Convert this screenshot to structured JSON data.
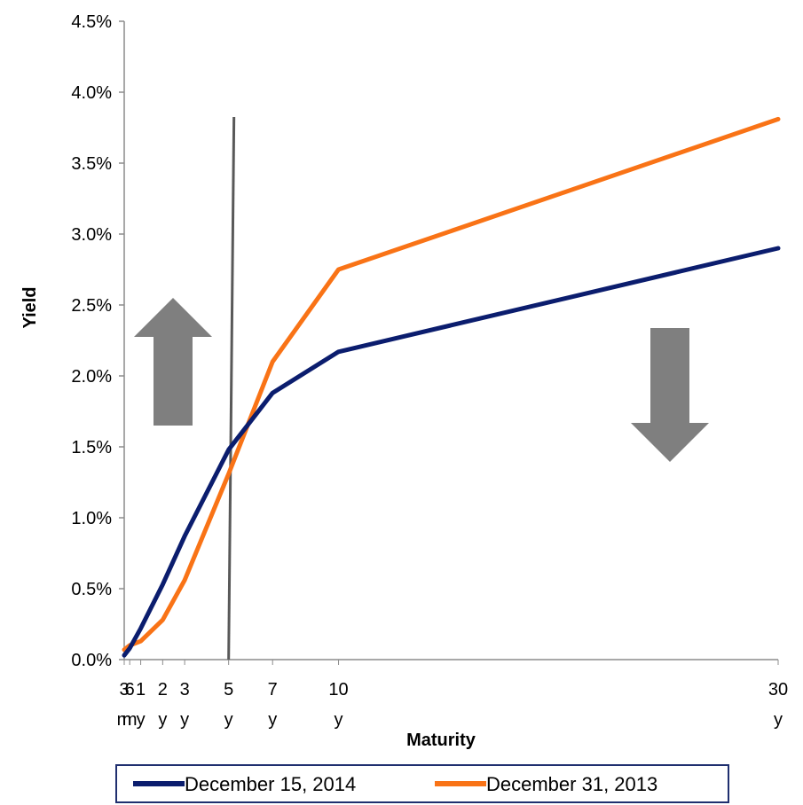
{
  "chart_data": {
    "type": "line",
    "title": "",
    "xlabel": "Maturity",
    "ylabel": "Yield",
    "ylim": [
      0,
      0.045
    ],
    "yticks": [
      "0.0%",
      "0.5%",
      "1.0%",
      "1.5%",
      "2.0%",
      "2.5%",
      "3.0%",
      "3.5%",
      "4.0%",
      "4.5%"
    ],
    "x_years": [
      0.25,
      0.5,
      1,
      2,
      3,
      5,
      7,
      10,
      30
    ],
    "x_tick_labels": [
      {
        "line1": "3",
        "line2": "m"
      },
      {
        "line1": "6",
        "line2": "m"
      },
      {
        "line1": "1",
        "line2": "y"
      },
      {
        "line1": "2",
        "line2": "y"
      },
      {
        "line1": "3",
        "line2": "y"
      },
      {
        "line1": "5",
        "line2": "y"
      },
      {
        "line1": "7",
        "line2": "y"
      },
      {
        "line1": "10",
        "line2": "y"
      },
      {
        "line1": "30",
        "line2": "y"
      }
    ],
    "series": [
      {
        "name": "December 15, 2014",
        "color": "#0b1d6e",
        "values": [
          0.0003,
          0.0008,
          0.0022,
          0.0053,
          0.0087,
          0.0148,
          0.0188,
          0.0217,
          0.029
        ]
      },
      {
        "name": "December 31, 2013",
        "color": "#f97316",
        "values": [
          0.0007,
          0.001,
          0.0013,
          0.0028,
          0.0056,
          0.0131,
          0.021,
          0.0275,
          0.0381
        ]
      }
    ],
    "vertical_line_at_years": 5,
    "annotations": [
      {
        "type": "arrow-up-icon",
        "color": "#7f7f7f"
      },
      {
        "type": "arrow-down-icon",
        "color": "#7f7f7f"
      }
    ],
    "grid": false,
    "legend_position": "bottom"
  }
}
